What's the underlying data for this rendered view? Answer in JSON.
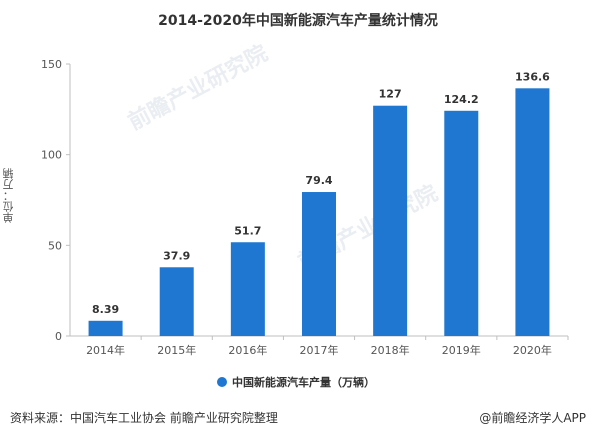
{
  "chart_data": {
    "type": "bar",
    "title": "2014-2020年中国新能源汽车产量统计情况",
    "ylabel": "单位：万辆",
    "categories": [
      "2014年",
      "2015年",
      "2016年",
      "2017年",
      "2018年",
      "2019年",
      "2020年"
    ],
    "series": [
      {
        "name": "中国新能源汽车产量（万辆）",
        "values": [
          8.39,
          37.9,
          51.7,
          79.4,
          127,
          124.2,
          136.6
        ]
      }
    ],
    "value_labels": [
      "8.39",
      "37.9",
      "51.7",
      "79.4",
      "127",
      "124.2",
      "136.6"
    ],
    "yticks": [
      0,
      50,
      100,
      150
    ],
    "ylim": [
      0,
      150
    ],
    "grid": false,
    "legend": "bottom",
    "bar_color": "#1f77d1"
  },
  "source_text": "资料来源：中国汽车工业协会 前瞻产业研究院整理",
  "brand_text": "@前瞻经济学人APP",
  "watermark_text": "前瞻产业研究院"
}
